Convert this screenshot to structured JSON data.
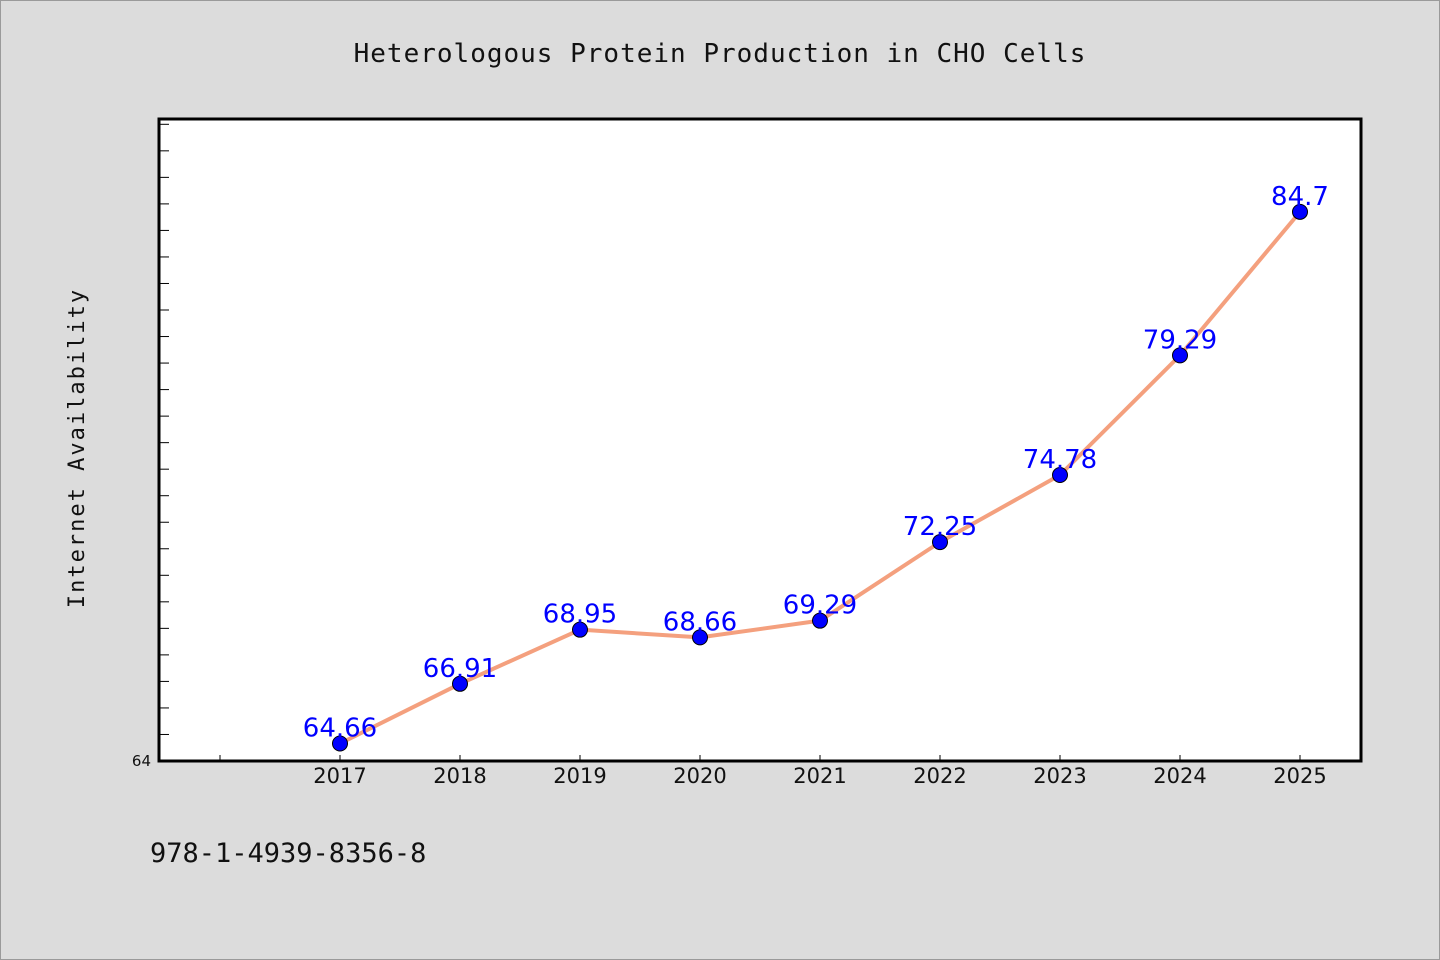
{
  "chart_data": {
    "type": "line",
    "title": "Heterologous Protein Production in CHO Cells",
    "xlabel": "",
    "ylabel": "Internet Availability",
    "categories": [
      "2017",
      "2018",
      "2019",
      "2020",
      "2021",
      "2022",
      "2023",
      "2024",
      "2025"
    ],
    "series": [
      {
        "values": [
          64.66,
          66.91,
          68.95,
          68.66,
          69.29,
          72.25,
          74.78,
          79.29,
          84.7
        ],
        "labels": [
          "64.66",
          "66.91",
          "68.95",
          "68.66",
          "69.29",
          "72.25",
          "74.78",
          "79.29",
          "84.7"
        ]
      }
    ],
    "y_tick_labels": [
      "64"
    ],
    "ylim": [
      64,
      88.2
    ],
    "grid": false,
    "line_color": "#f4a07e",
    "marker_color": "#0000ff",
    "label_color": "#0000ff",
    "frame_color": "#000000",
    "plot_background": "#ffffff",
    "page_background": "#dcdcdc"
  },
  "footer": {
    "text": "978-1-4939-8356-8"
  }
}
